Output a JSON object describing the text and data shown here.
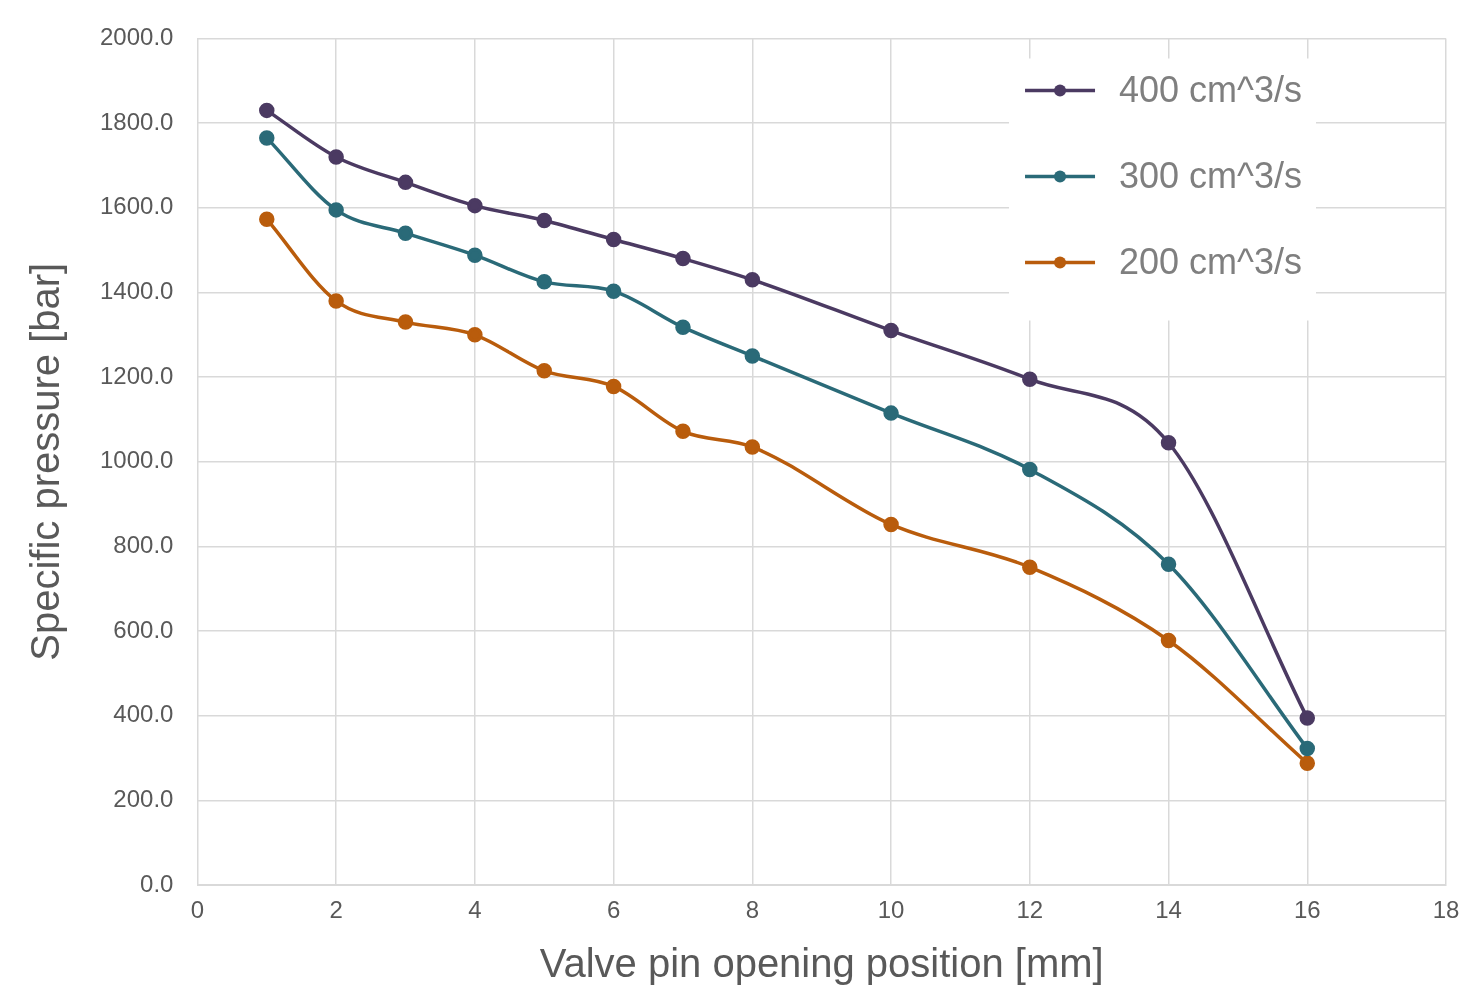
{
  "chart_data": {
    "type": "line",
    "xlabel": "Valve pin opening position [mm]",
    "ylabel": "Specific pressure [bar]",
    "x": [
      1,
      2,
      3,
      4,
      5,
      6,
      7,
      8,
      10,
      12,
      14,
      16
    ],
    "series": [
      {
        "name": "400 cm^3/s",
        "color": "#4b3a62",
        "values": [
          1830,
          1720,
          1660,
          1605,
          1570,
          1525,
          1480,
          1430,
          1310,
          1195,
          1045,
          395
        ]
      },
      {
        "name": "300 cm^3/s",
        "color": "#2a6a78",
        "values": [
          1765,
          1595,
          1540,
          1488,
          1425,
          1403,
          1318,
          1250,
          1115,
          982,
          758,
          323
        ]
      },
      {
        "name": "200 cm^3/s",
        "color": "#b95c0c",
        "values": [
          1573,
          1380,
          1330,
          1300,
          1215,
          1178,
          1072,
          1035,
          852,
          751,
          578,
          288
        ]
      }
    ],
    "xlim": [
      0,
      18
    ],
    "xticks": [
      0,
      2,
      4,
      6,
      8,
      10,
      12,
      14,
      16,
      18
    ],
    "ylim": [
      0,
      2000
    ],
    "yticks": [
      {
        "value": 0,
        "label": "0.0"
      },
      {
        "value": 200,
        "label": "200.0"
      },
      {
        "value": 400,
        "label": "400.0"
      },
      {
        "value": 600,
        "label": "600.0"
      },
      {
        "value": 800,
        "label": "800.0"
      },
      {
        "value": 1000,
        "label": "1000.0"
      },
      {
        "value": 1200,
        "label": "1200.0"
      },
      {
        "value": 1400,
        "label": "1400.0"
      },
      {
        "value": 1600,
        "label": "1600.0"
      },
      {
        "value": 1800,
        "label": "1800.0"
      },
      {
        "value": 2000,
        "label": "2000.0"
      }
    ],
    "grid": true,
    "legend": "top right",
    "marker": "circle",
    "line_style": "solid"
  }
}
